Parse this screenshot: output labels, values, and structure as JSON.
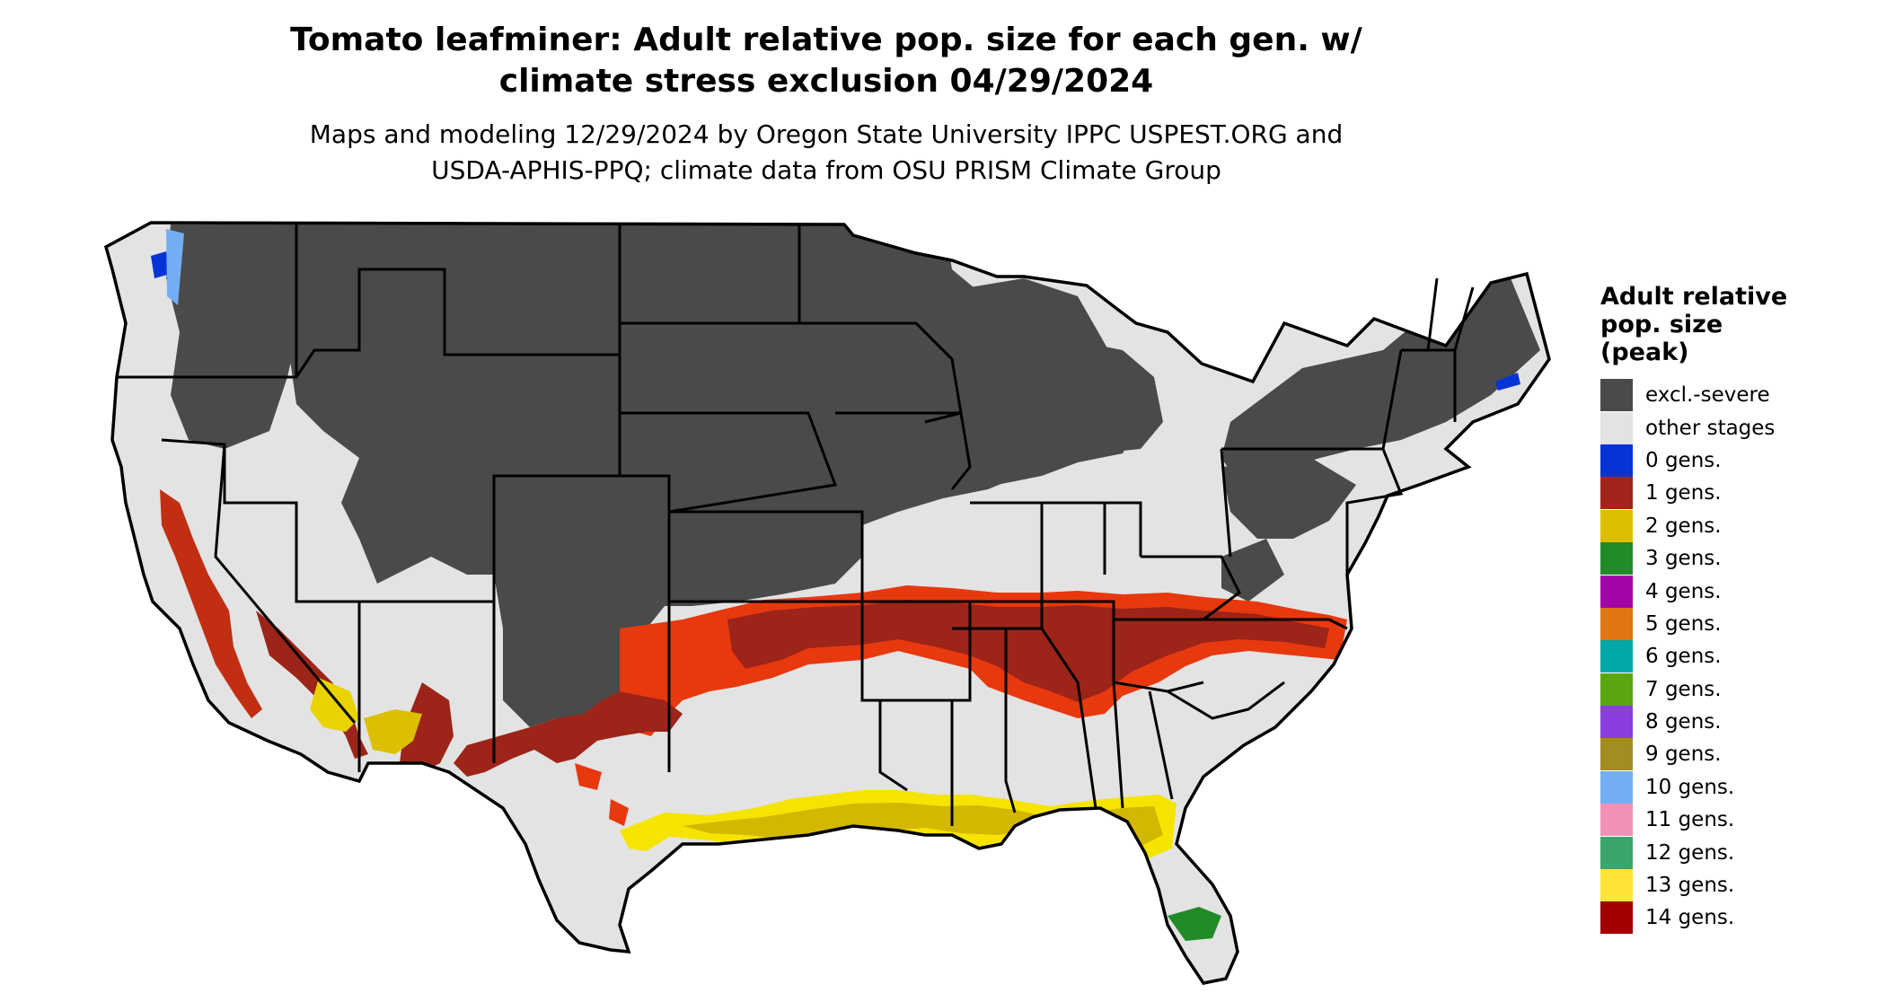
{
  "title": {
    "line1": "Tomato leafminer: Adult relative pop. size for each gen. w/",
    "line2": "climate stress exclusion 04/29/2024"
  },
  "subtitle": {
    "line1": "Maps and modeling 12/29/2024 by Oregon State University IPPC USPEST.ORG and",
    "line2": "USDA-APHIS-PPQ; climate data from OSU PRISM Climate Group"
  },
  "legend": {
    "title_lines": [
      "Adult relative",
      "pop. size",
      "(peak)"
    ],
    "items": [
      {
        "label": "excl.-severe",
        "color": "#4a4a4a"
      },
      {
        "label": "other stages",
        "color": "#e3e3e3"
      },
      {
        "label": "0 gens.",
        "color": "#0433d6"
      },
      {
        "label": "1 gens.",
        "color": "#a3241a"
      },
      {
        "label": "2 gens.",
        "color": "#dcc000"
      },
      {
        "label": "3 gens.",
        "color": "#238a2a"
      },
      {
        "label": "4 gens.",
        "color": "#a304a8"
      },
      {
        "label": "5 gens.",
        "color": "#e07514"
      },
      {
        "label": "6 gens.",
        "color": "#00a8a6"
      },
      {
        "label": "7 gens.",
        "color": "#5aa612"
      },
      {
        "label": "8 gens.",
        "color": "#8a3ee0"
      },
      {
        "label": "9 gens.",
        "color": "#a38d22"
      },
      {
        "label": "10 gens.",
        "color": "#73aef5"
      },
      {
        "label": "11 gens.",
        "color": "#f092b6"
      },
      {
        "label": "12 gens.",
        "color": "#3aa56c"
      },
      {
        "label": "13 gens.",
        "color": "#fde437"
      },
      {
        "label": "14 gens.",
        "color": "#a30000"
      }
    ]
  },
  "map": {
    "colors": {
      "excluded": "#4a4a4a",
      "other": "#e3e3e3",
      "gen1": "#9c2418",
      "gen1_edge": "#e8380e",
      "gen2": "#d3b800",
      "gen2_edge": "#f5e400",
      "gen3": "#238a2a",
      "gen0": "#0433d6",
      "gen10": "#73aef5",
      "border": "#000000"
    }
  }
}
